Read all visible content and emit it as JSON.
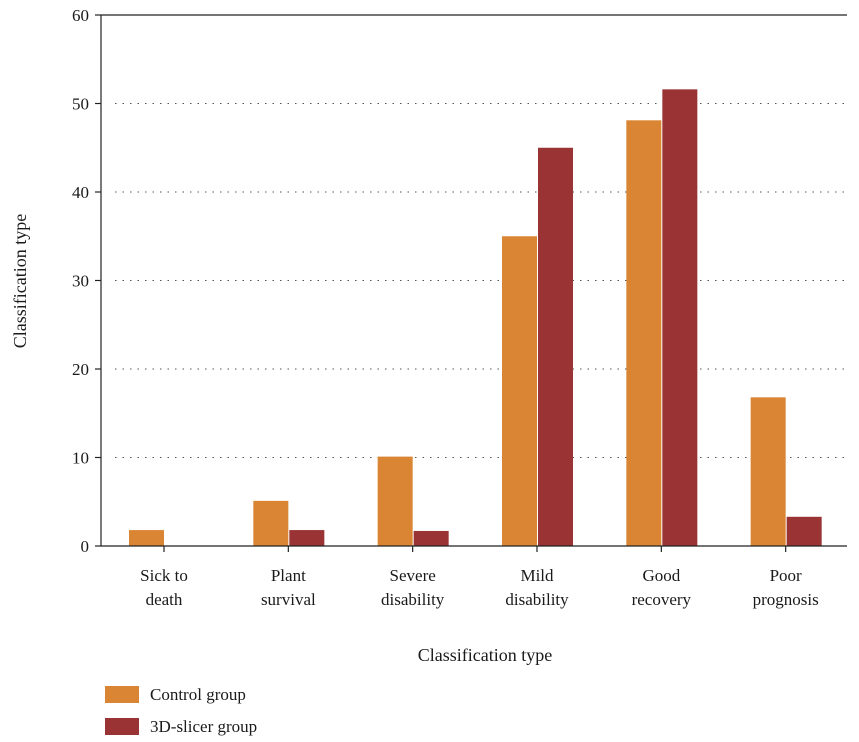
{
  "chart_data": {
    "type": "bar",
    "title": "",
    "xlabel": "Classification type",
    "ylabel": "Classification type",
    "categories": [
      [
        "Sick to",
        "death"
      ],
      [
        "Plant",
        "survival"
      ],
      [
        "Severe",
        "disability"
      ],
      [
        "Mild",
        "disability"
      ],
      [
        "Good",
        "recovery"
      ],
      [
        "Poor",
        "prognosis"
      ]
    ],
    "series": [
      {
        "name": "Control group",
        "color": "#d98533",
        "values": [
          1.8,
          5.1,
          10.1,
          35.0,
          48.1,
          16.8
        ]
      },
      {
        "name": "3D-slicer group",
        "color": "#9a3333",
        "values": [
          0,
          1.8,
          1.7,
          45.0,
          51.6,
          3.3
        ]
      }
    ],
    "ylim": [
      0,
      60
    ],
    "yticks": [
      0,
      10,
      20,
      30,
      40,
      50,
      60
    ],
    "grid": {
      "horizontal": true,
      "style": "dotted"
    },
    "legend": {
      "position": "bottom-left"
    }
  }
}
